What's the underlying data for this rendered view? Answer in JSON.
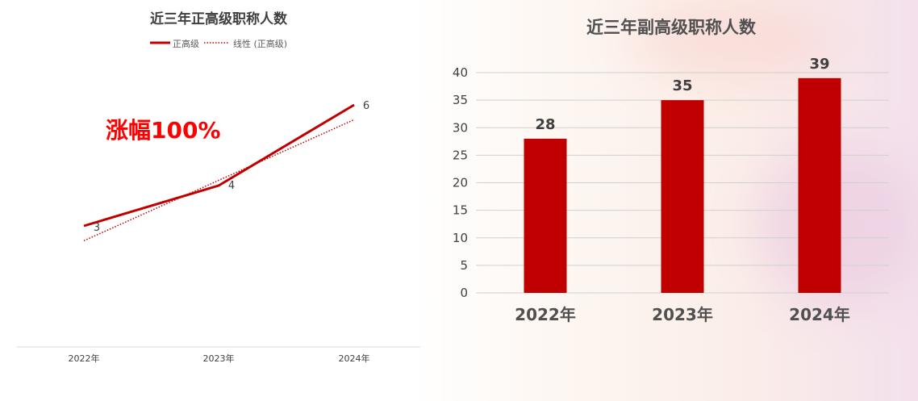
{
  "chart_data": [
    {
      "type": "line",
      "title": "近三年正高级职称人数",
      "categories": [
        "2022年",
        "2023年",
        "2024年"
      ],
      "series": [
        {
          "name": "正高级",
          "values": [
            3,
            4,
            6
          ],
          "color": "#c00000",
          "style": "solid"
        }
      ],
      "trendline": {
        "name": "线性 (正高级)",
        "type": "linear",
        "color": "#c00000",
        "style": "dotted"
      },
      "annotation": "涨幅100%",
      "annotation_color": "#ff0000",
      "legend": "top",
      "grid": false,
      "ylim": [
        0,
        6
      ]
    },
    {
      "type": "bar",
      "title": "近三年副高级职称人数",
      "categories": [
        "2022年",
        "2023年",
        "2024年"
      ],
      "values": [
        28,
        35,
        39
      ],
      "color": "#c00000",
      "yticks": [
        0,
        5,
        10,
        15,
        20,
        25,
        30,
        35,
        40
      ],
      "ylim": [
        0,
        40
      ],
      "grid": true
    }
  ]
}
